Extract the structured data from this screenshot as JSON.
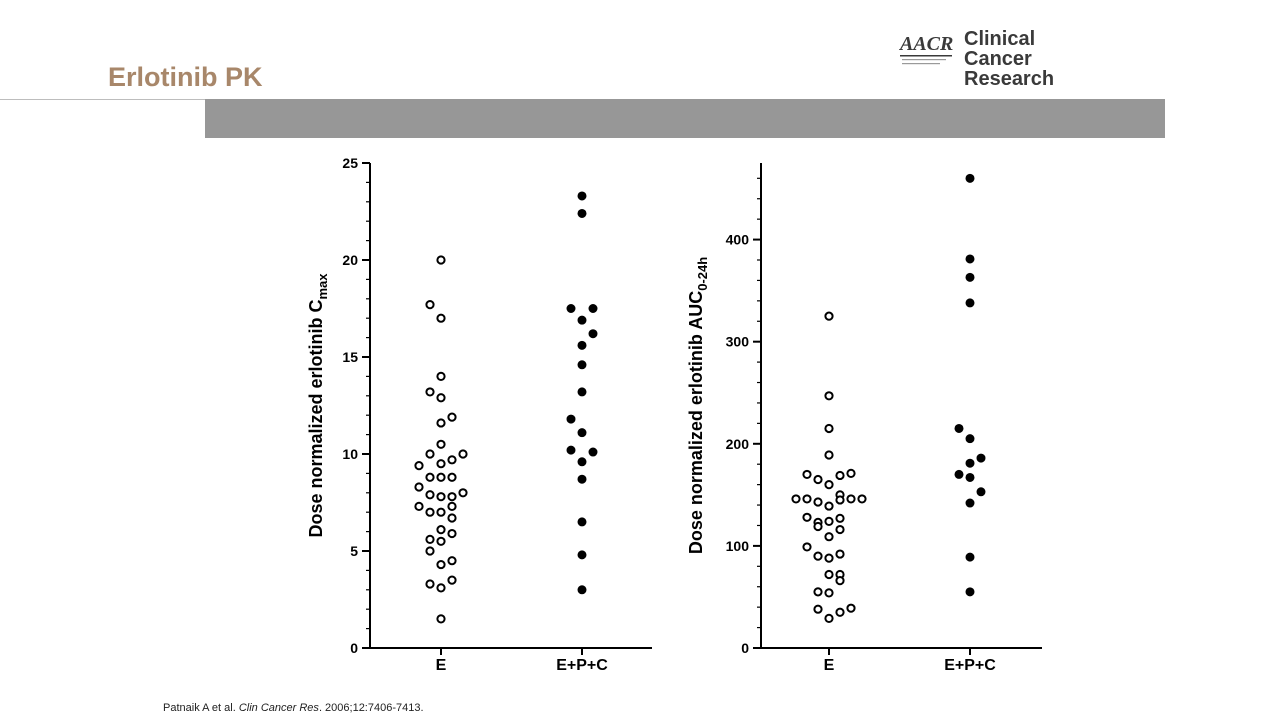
{
  "slide": {
    "title": "Erlotinib PK"
  },
  "logo": {
    "mark_text": "AACR",
    "name_line1": "Clinical Cancer",
    "name_line2": "Research",
    "color": "#3a3a3a"
  },
  "citation": {
    "authors": "Patnaik A et al. ",
    "journal": "Clin Cancer Res",
    "details": ". 2006;12:7406-7413."
  },
  "colors": {
    "title": "#a8876a",
    "band": "#979797",
    "marker": "#000000"
  },
  "chart_data": [
    {
      "type": "scatter",
      "title": "",
      "ylabel_main": "Dose normalized erlotinib C",
      "ylabel_sub": "max",
      "xlabel": "",
      "ylim": [
        0,
        25
      ],
      "yticks": [
        "0",
        "5",
        "10",
        "15",
        "20",
        "25"
      ],
      "categories": [
        "E",
        "E+P+C"
      ],
      "series": [
        {
          "category": "E",
          "marker": "open-circle",
          "points": [
            {
              "jitter": 0,
              "y": 20.0
            },
            {
              "jitter": -1,
              "y": 17.7
            },
            {
              "jitter": 0,
              "y": 17.0
            },
            {
              "jitter": 0,
              "y": 14.0
            },
            {
              "jitter": -1,
              "y": 13.2
            },
            {
              "jitter": 0,
              "y": 12.9
            },
            {
              "jitter": 1,
              "y": 11.9
            },
            {
              "jitter": 0,
              "y": 11.6
            },
            {
              "jitter": 0,
              "y": 10.5
            },
            {
              "jitter": -1,
              "y": 10.0
            },
            {
              "jitter": 2,
              "y": 10.0
            },
            {
              "jitter": 1,
              "y": 9.7
            },
            {
              "jitter": -2,
              "y": 9.4
            },
            {
              "jitter": 0,
              "y": 9.5
            },
            {
              "jitter": -1,
              "y": 8.8
            },
            {
              "jitter": 0,
              "y": 8.8
            },
            {
              "jitter": 1,
              "y": 8.8
            },
            {
              "jitter": -2,
              "y": 8.3
            },
            {
              "jitter": -1,
              "y": 7.9
            },
            {
              "jitter": 0,
              "y": 7.8
            },
            {
              "jitter": 1,
              "y": 7.8
            },
            {
              "jitter": 2,
              "y": 8.0
            },
            {
              "jitter": -2,
              "y": 7.3
            },
            {
              "jitter": 1,
              "y": 7.3
            },
            {
              "jitter": -1,
              "y": 7.0
            },
            {
              "jitter": 0,
              "y": 7.0
            },
            {
              "jitter": 1,
              "y": 6.7
            },
            {
              "jitter": 0,
              "y": 6.1
            },
            {
              "jitter": 1,
              "y": 5.9
            },
            {
              "jitter": -1,
              "y": 5.6
            },
            {
              "jitter": 0,
              "y": 5.5
            },
            {
              "jitter": -1,
              "y": 5.0
            },
            {
              "jitter": 1,
              "y": 4.5
            },
            {
              "jitter": 0,
              "y": 4.3
            },
            {
              "jitter": 1,
              "y": 3.5
            },
            {
              "jitter": -1,
              "y": 3.3
            },
            {
              "jitter": 0,
              "y": 3.1
            },
            {
              "jitter": 0,
              "y": 1.5
            }
          ]
        },
        {
          "category": "E+P+C",
          "marker": "filled-circle",
          "points": [
            {
              "jitter": 0,
              "y": 23.3
            },
            {
              "jitter": 0,
              "y": 22.4
            },
            {
              "jitter": -1,
              "y": 17.5
            },
            {
              "jitter": 1,
              "y": 17.5
            },
            {
              "jitter": 0,
              "y": 16.9
            },
            {
              "jitter": 1,
              "y": 16.2
            },
            {
              "jitter": 0,
              "y": 15.6
            },
            {
              "jitter": 0,
              "y": 14.6
            },
            {
              "jitter": 0,
              "y": 13.2
            },
            {
              "jitter": -1,
              "y": 11.8
            },
            {
              "jitter": 0,
              "y": 11.1
            },
            {
              "jitter": -1,
              "y": 10.2
            },
            {
              "jitter": 1,
              "y": 10.1
            },
            {
              "jitter": 0,
              "y": 9.6
            },
            {
              "jitter": 0,
              "y": 8.7
            },
            {
              "jitter": 0,
              "y": 6.5
            },
            {
              "jitter": 0,
              "y": 4.8
            },
            {
              "jitter": 0,
              "y": 3.0
            }
          ]
        }
      ]
    },
    {
      "type": "scatter",
      "title": "",
      "ylabel_main": "Dose normalized erlotinib AUC",
      "ylabel_sub": "0-24h",
      "xlabel": "",
      "ylim": [
        0,
        475
      ],
      "yticks": [
        "0",
        "100",
        "200",
        "300",
        "400"
      ],
      "categories": [
        "E",
        "E+P+C"
      ],
      "series": [
        {
          "category": "E",
          "marker": "open-circle",
          "points": [
            {
              "jitter": 0,
              "y": 325
            },
            {
              "jitter": 0,
              "y": 247
            },
            {
              "jitter": 0,
              "y": 215
            },
            {
              "jitter": 0,
              "y": 189
            },
            {
              "jitter": -2,
              "y": 170
            },
            {
              "jitter": 1,
              "y": 169
            },
            {
              "jitter": 2,
              "y": 171
            },
            {
              "jitter": -1,
              "y": 165
            },
            {
              "jitter": 0,
              "y": 160
            },
            {
              "jitter": -3,
              "y": 146
            },
            {
              "jitter": -2,
              "y": 146
            },
            {
              "jitter": -1,
              "y": 143
            },
            {
              "jitter": 1,
              "y": 150
            },
            {
              "jitter": 2,
              "y": 146
            },
            {
              "jitter": 3,
              "y": 146
            },
            {
              "jitter": 0,
              "y": 139
            },
            {
              "jitter": 1,
              "y": 145
            },
            {
              "jitter": -2,
              "y": 128
            },
            {
              "jitter": -1,
              "y": 123
            },
            {
              "jitter": 0,
              "y": 124
            },
            {
              "jitter": 1,
              "y": 127
            },
            {
              "jitter": -1,
              "y": 119
            },
            {
              "jitter": 1,
              "y": 116
            },
            {
              "jitter": 0,
              "y": 109
            },
            {
              "jitter": -2,
              "y": 99
            },
            {
              "jitter": -1,
              "y": 90
            },
            {
              "jitter": 0,
              "y": 88
            },
            {
              "jitter": 1,
              "y": 92
            },
            {
              "jitter": 0,
              "y": 72
            },
            {
              "jitter": 1,
              "y": 72
            },
            {
              "jitter": 1,
              "y": 66
            },
            {
              "jitter": -1,
              "y": 55
            },
            {
              "jitter": 0,
              "y": 54
            },
            {
              "jitter": -1,
              "y": 38
            },
            {
              "jitter": 2,
              "y": 39
            },
            {
              "jitter": 1,
              "y": 35
            },
            {
              "jitter": 0,
              "y": 29
            }
          ]
        },
        {
          "category": "E+P+C",
          "marker": "filled-circle",
          "points": [
            {
              "jitter": 0,
              "y": 460
            },
            {
              "jitter": 0,
              "y": 381
            },
            {
              "jitter": 0,
              "y": 363
            },
            {
              "jitter": 0,
              "y": 338
            },
            {
              "jitter": -1,
              "y": 215
            },
            {
              "jitter": 0,
              "y": 205
            },
            {
              "jitter": 1,
              "y": 186
            },
            {
              "jitter": 0,
              "y": 181
            },
            {
              "jitter": -1,
              "y": 170
            },
            {
              "jitter": 0,
              "y": 167
            },
            {
              "jitter": 1,
              "y": 153
            },
            {
              "jitter": 0,
              "y": 142
            },
            {
              "jitter": 0,
              "y": 89
            },
            {
              "jitter": 0,
              "y": 55
            }
          ]
        }
      ]
    }
  ]
}
